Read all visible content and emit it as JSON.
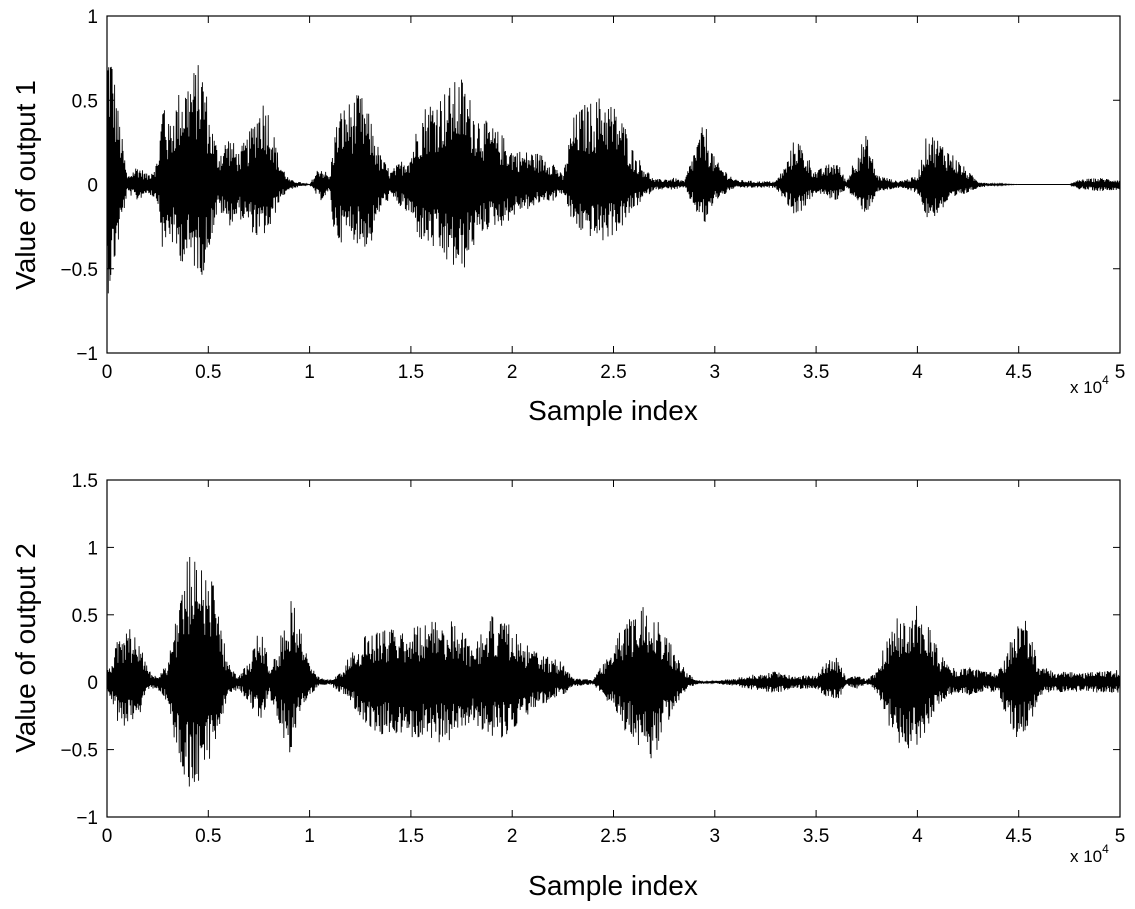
{
  "chart_data": [
    {
      "type": "line",
      "title": "",
      "xlabel": "Sample index",
      "ylabel": "Value of output 1",
      "x_exponent_label": "x 10",
      "x_exponent_power": "4",
      "xlim": [
        0,
        5
      ],
      "ylim": [
        -1,
        1
      ],
      "xticks": [
        0,
        0.5,
        1,
        1.5,
        2,
        2.5,
        3,
        3.5,
        4,
        4.5,
        5
      ],
      "xtick_labels": [
        "0",
        "0.5",
        "1",
        "1.5",
        "2",
        "2.5",
        "3",
        "3.5",
        "4",
        "4.5",
        "5"
      ],
      "yticks": [
        -1,
        -0.5,
        0,
        0.5,
        1
      ],
      "ytick_labels": [
        "−1",
        "−0.5",
        "0",
        "0.5",
        "1"
      ],
      "grid": false,
      "color": "#000000",
      "envelope": {
        "x": [
          0.0,
          0.02,
          0.05,
          0.1,
          0.15,
          0.2,
          0.25,
          0.28,
          0.3,
          0.35,
          0.4,
          0.45,
          0.48,
          0.5,
          0.55,
          0.6,
          0.65,
          0.7,
          0.75,
          0.78,
          0.8,
          0.85,
          0.9,
          1.0,
          1.05,
          1.1,
          1.12,
          1.15,
          1.2,
          1.25,
          1.3,
          1.35,
          1.4,
          1.5,
          1.55,
          1.6,
          1.65,
          1.7,
          1.75,
          1.8,
          1.85,
          1.9,
          1.95,
          2.0,
          2.05,
          2.1,
          2.15,
          2.2,
          2.25,
          2.3,
          2.35,
          2.4,
          2.45,
          2.5,
          2.55,
          2.6,
          2.7,
          2.8,
          2.85,
          2.9,
          2.95,
          3.0,
          3.1,
          3.2,
          3.3,
          3.35,
          3.4,
          3.5,
          3.6,
          3.65,
          3.7,
          3.75,
          3.8,
          3.9,
          4.0,
          4.05,
          4.1,
          4.15,
          4.2,
          4.25,
          4.3,
          4.35,
          4.4,
          4.5,
          4.6,
          4.75,
          4.8,
          4.9,
          5.0
        ],
        "upper": [
          0.9,
          0.85,
          0.5,
          0.05,
          0.12,
          0.06,
          0.15,
          0.6,
          0.35,
          0.55,
          0.65,
          0.72,
          0.7,
          0.45,
          0.2,
          0.3,
          0.2,
          0.3,
          0.5,
          0.53,
          0.45,
          0.15,
          0.03,
          0.0,
          0.12,
          0.05,
          0.3,
          0.45,
          0.5,
          0.55,
          0.4,
          0.18,
          0.08,
          0.2,
          0.45,
          0.52,
          0.55,
          0.6,
          0.65,
          0.5,
          0.4,
          0.35,
          0.3,
          0.22,
          0.2,
          0.2,
          0.18,
          0.15,
          0.05,
          0.4,
          0.48,
          0.5,
          0.55,
          0.48,
          0.38,
          0.2,
          0.03,
          0.04,
          0.02,
          0.22,
          0.38,
          0.15,
          0.03,
          0.02,
          0.02,
          0.12,
          0.3,
          0.08,
          0.15,
          0.02,
          0.2,
          0.3,
          0.06,
          0.02,
          0.05,
          0.32,
          0.28,
          0.22,
          0.15,
          0.08,
          0.02,
          0.01,
          0.005,
          0.0,
          0.0,
          0.0,
          0.03,
          0.04,
          0.03
        ],
        "lower": [
          -0.67,
          -0.6,
          -0.4,
          -0.05,
          -0.1,
          -0.05,
          -0.1,
          -0.48,
          -0.3,
          -0.45,
          -0.48,
          -0.52,
          -0.55,
          -0.4,
          -0.15,
          -0.25,
          -0.2,
          -0.25,
          -0.35,
          -0.3,
          -0.3,
          -0.1,
          -0.03,
          0.0,
          -0.1,
          -0.05,
          -0.3,
          -0.35,
          -0.3,
          -0.38,
          -0.38,
          -0.15,
          -0.08,
          -0.2,
          -0.35,
          -0.38,
          -0.45,
          -0.5,
          -0.55,
          -0.4,
          -0.3,
          -0.25,
          -0.25,
          -0.2,
          -0.15,
          -0.15,
          -0.1,
          -0.1,
          -0.05,
          -0.25,
          -0.3,
          -0.32,
          -0.35,
          -0.3,
          -0.25,
          -0.15,
          -0.03,
          -0.03,
          -0.02,
          -0.15,
          -0.25,
          -0.1,
          -0.02,
          -0.02,
          -0.02,
          -0.1,
          -0.2,
          -0.05,
          -0.1,
          -0.02,
          -0.12,
          -0.18,
          -0.05,
          -0.02,
          -0.05,
          -0.22,
          -0.18,
          -0.12,
          -0.08,
          -0.05,
          -0.02,
          -0.01,
          -0.005,
          0.0,
          0.0,
          0.0,
          -0.03,
          -0.04,
          -0.03
        ]
      }
    },
    {
      "type": "line",
      "title": "",
      "xlabel": "Sample index",
      "ylabel": "Value of output 2",
      "x_exponent_label": "x 10",
      "x_exponent_power": "4",
      "xlim": [
        0,
        5
      ],
      "ylim": [
        -1,
        1.5
      ],
      "xticks": [
        0,
        0.5,
        1,
        1.5,
        2,
        2.5,
        3,
        3.5,
        4,
        4.5,
        5
      ],
      "xtick_labels": [
        "0",
        "0.5",
        "1",
        "1.5",
        "2",
        "2.5",
        "3",
        "3.5",
        "4",
        "4.5",
        "5"
      ],
      "yticks": [
        -1,
        -0.5,
        0,
        0.5,
        1,
        1.5
      ],
      "ytick_labels": [
        "−1",
        "−0.5",
        "0",
        "0.5",
        "1",
        "1.5"
      ],
      "grid": false,
      "color": "#000000",
      "envelope": {
        "x": [
          0.0,
          0.05,
          0.1,
          0.15,
          0.2,
          0.25,
          0.3,
          0.35,
          0.4,
          0.45,
          0.5,
          0.55,
          0.6,
          0.65,
          0.7,
          0.75,
          0.78,
          0.8,
          0.85,
          0.9,
          0.92,
          0.95,
          1.0,
          1.05,
          1.1,
          1.15,
          1.2,
          1.3,
          1.35,
          1.4,
          1.5,
          1.6,
          1.7,
          1.75,
          1.8,
          1.9,
          1.95,
          2.0,
          2.05,
          2.1,
          2.15,
          2.2,
          2.25,
          2.3,
          2.4,
          2.5,
          2.55,
          2.6,
          2.65,
          2.7,
          2.75,
          2.8,
          2.85,
          2.9,
          2.95,
          3.0,
          3.1,
          3.2,
          3.3,
          3.4,
          3.5,
          3.55,
          3.6,
          3.65,
          3.7,
          3.75,
          3.8,
          3.85,
          3.9,
          3.95,
          4.0,
          4.05,
          4.1,
          4.15,
          4.2,
          4.25,
          4.3,
          4.35,
          4.4,
          4.45,
          4.5,
          4.55,
          4.6,
          4.7,
          4.8,
          4.9,
          5.0
        ],
        "upper": [
          0.1,
          0.3,
          0.4,
          0.4,
          0.1,
          0.05,
          0.15,
          0.6,
          0.95,
          1.0,
          0.95,
          0.5,
          0.15,
          0.05,
          0.15,
          0.45,
          0.35,
          0.1,
          0.3,
          0.6,
          0.68,
          0.45,
          0.15,
          0.03,
          0.02,
          0.08,
          0.2,
          0.4,
          0.4,
          0.4,
          0.42,
          0.45,
          0.46,
          0.4,
          0.3,
          0.5,
          0.45,
          0.42,
          0.3,
          0.25,
          0.2,
          0.18,
          0.15,
          0.03,
          0.02,
          0.3,
          0.45,
          0.5,
          0.6,
          0.64,
          0.4,
          0.25,
          0.1,
          0.02,
          0.01,
          0.01,
          0.03,
          0.06,
          0.08,
          0.05,
          0.05,
          0.15,
          0.2,
          0.03,
          0.05,
          0.02,
          0.08,
          0.35,
          0.5,
          0.55,
          0.57,
          0.45,
          0.25,
          0.12,
          0.1,
          0.12,
          0.1,
          0.08,
          0.1,
          0.25,
          0.55,
          0.45,
          0.12,
          0.08,
          0.07,
          0.08,
          0.1
        ],
        "upper_note": "",
        "lower": [
          -0.05,
          -0.3,
          -0.35,
          -0.3,
          -0.05,
          -0.05,
          -0.15,
          -0.6,
          -0.8,
          -0.75,
          -0.6,
          -0.35,
          -0.1,
          -0.05,
          -0.15,
          -0.3,
          -0.2,
          -0.1,
          -0.3,
          -0.55,
          -0.45,
          -0.25,
          -0.1,
          -0.02,
          -0.02,
          -0.08,
          -0.15,
          -0.35,
          -0.4,
          -0.42,
          -0.45,
          -0.45,
          -0.44,
          -0.4,
          -0.3,
          -0.4,
          -0.42,
          -0.35,
          -0.3,
          -0.22,
          -0.18,
          -0.12,
          -0.1,
          -0.03,
          -0.02,
          -0.2,
          -0.35,
          -0.42,
          -0.55,
          -0.6,
          -0.35,
          -0.2,
          -0.08,
          -0.02,
          -0.01,
          -0.01,
          -0.03,
          -0.06,
          -0.08,
          -0.05,
          -0.05,
          -0.12,
          -0.15,
          -0.03,
          -0.05,
          -0.02,
          -0.08,
          -0.3,
          -0.45,
          -0.52,
          -0.48,
          -0.35,
          -0.2,
          -0.1,
          -0.08,
          -0.1,
          -0.08,
          -0.06,
          -0.1,
          -0.3,
          -0.45,
          -0.35,
          -0.1,
          -0.08,
          -0.07,
          -0.08,
          -0.08
        ]
      }
    }
  ]
}
